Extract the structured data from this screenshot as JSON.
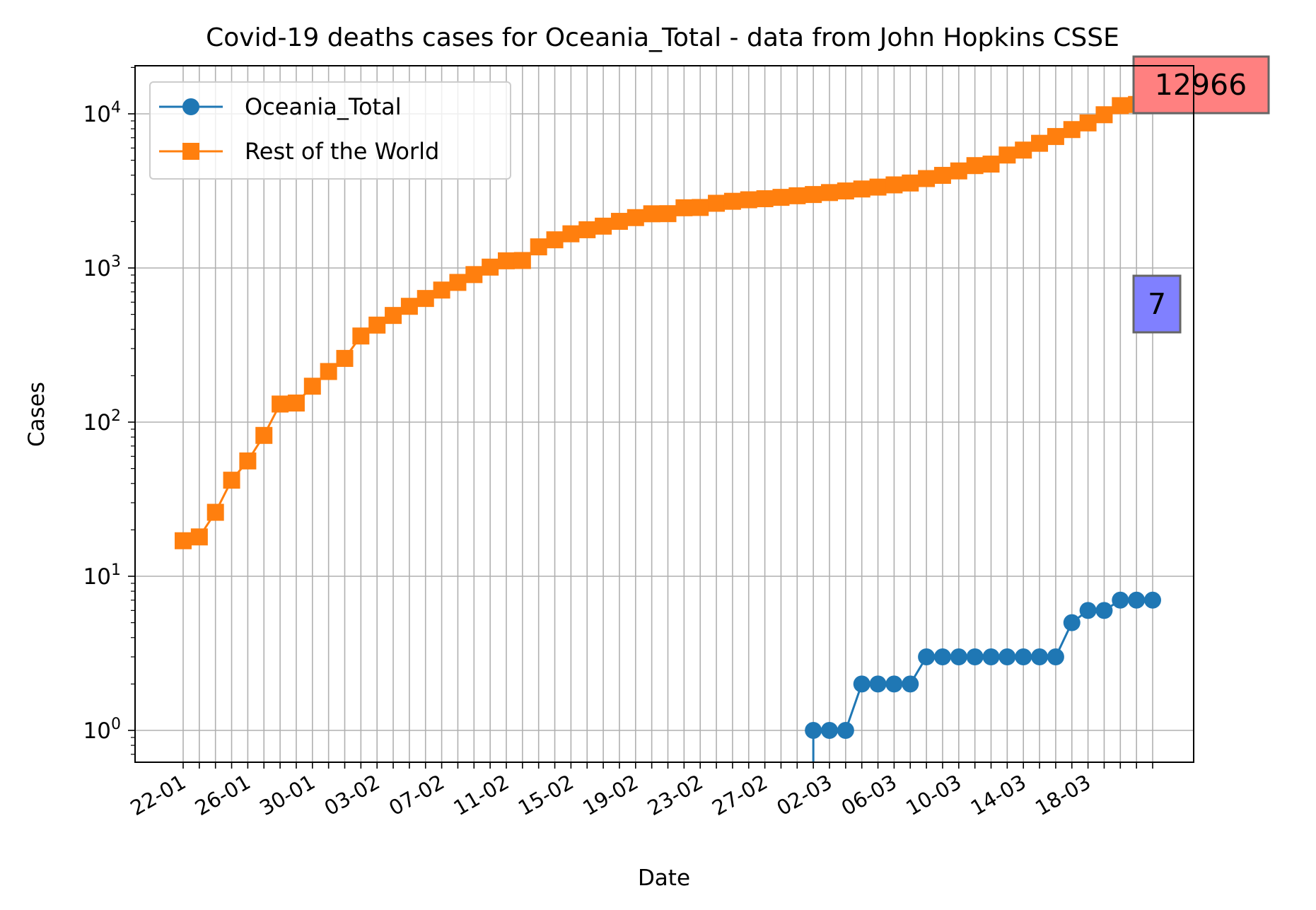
{
  "chart_data": {
    "type": "line",
    "title": "Covid-19 deaths cases for Oceania_Total - data from John Hopkins CSSE",
    "xlabel": "Date",
    "ylabel": "Cases",
    "yscale": "log",
    "ylim": [
      0.6,
      21000
    ],
    "grid": true,
    "legend_position": "upper-left",
    "x_start": "22-01",
    "x_tick_labels": [
      "22-01",
      "26-01",
      "30-01",
      "03-02",
      "07-02",
      "11-02",
      "15-02",
      "19-02",
      "23-02",
      "27-02",
      "02-03",
      "06-03",
      "10-03",
      "14-03",
      "18-03"
    ],
    "y_tick_labels": [
      {
        "value": 1,
        "base": "10",
        "exp": "0"
      },
      {
        "value": 10,
        "base": "10",
        "exp": "1"
      },
      {
        "value": 100,
        "base": "10",
        "exp": "2"
      },
      {
        "value": 1000,
        "base": "10",
        "exp": "3"
      },
      {
        "value": 10000,
        "base": "10",
        "exp": "4"
      }
    ],
    "series": [
      {
        "name": "Oceania_Total",
        "color": "#1f77b4",
        "marker": "circle",
        "x": [
          "22-01",
          "23-01",
          "24-01",
          "25-01",
          "26-01",
          "27-01",
          "28-01",
          "29-01",
          "30-01",
          "31-01",
          "01-02",
          "02-02",
          "03-02",
          "04-02",
          "05-02",
          "06-02",
          "07-02",
          "08-02",
          "09-02",
          "10-02",
          "11-02",
          "12-02",
          "13-02",
          "14-02",
          "15-02",
          "16-02",
          "17-02",
          "18-02",
          "19-02",
          "20-02",
          "21-02",
          "22-02",
          "23-02",
          "24-02",
          "25-02",
          "26-02",
          "27-02",
          "28-02",
          "29-02",
          "01-03",
          "02-03",
          "03-03",
          "04-03",
          "05-03",
          "06-03",
          "07-03",
          "08-03",
          "09-03",
          "10-03",
          "11-03",
          "12-03",
          "13-03",
          "14-03",
          "15-03",
          "16-03",
          "17-03",
          "18-03",
          "19-03",
          "20-03",
          "21-03",
          "22-03"
        ],
        "values": [
          0,
          0,
          0,
          0,
          0,
          0,
          0,
          0,
          0,
          0,
          0,
          0,
          0,
          0,
          0,
          0,
          0,
          0,
          0,
          0,
          0,
          0,
          0,
          0,
          0,
          0,
          0,
          0,
          0,
          0,
          0,
          0,
          0,
          0,
          0,
          0,
          0,
          0,
          0,
          1,
          1,
          1,
          2,
          2,
          2,
          2,
          3,
          3,
          3,
          3,
          3,
          3,
          3,
          3,
          3,
          5,
          6,
          6,
          7,
          7,
          7
        ]
      },
      {
        "name": "Rest of the World",
        "color": "#ff7f0e",
        "marker": "square",
        "x": [
          "22-01",
          "23-01",
          "24-01",
          "25-01",
          "26-01",
          "27-01",
          "28-01",
          "29-01",
          "30-01",
          "31-01",
          "01-02",
          "02-02",
          "03-02",
          "04-02",
          "05-02",
          "06-02",
          "07-02",
          "08-02",
          "09-02",
          "10-02",
          "11-02",
          "12-02",
          "13-02",
          "14-02",
          "15-02",
          "16-02",
          "17-02",
          "18-02",
          "19-02",
          "20-02",
          "21-02",
          "22-02",
          "23-02",
          "24-02",
          "25-02",
          "26-02",
          "27-02",
          "28-02",
          "29-02",
          "01-03",
          "02-03",
          "03-03",
          "04-03",
          "05-03",
          "06-03",
          "07-03",
          "08-03",
          "09-03",
          "10-03",
          "11-03",
          "12-03",
          "13-03",
          "14-03",
          "15-03",
          "16-03",
          "17-03",
          "18-03",
          "19-03",
          "20-03",
          "21-03",
          "22-03"
        ],
        "values": [
          17,
          18,
          26,
          42,
          56,
          82,
          131,
          133,
          171,
          213,
          259,
          362,
          426,
          492,
          564,
          634,
          719,
          806,
          906,
          1013,
          1113,
          1118,
          1371,
          1523,
          1666,
          1770,
          1868,
          2007,
          2122,
          2247,
          2251,
          2458,
          2469,
          2629,
          2708,
          2770,
          2814,
          2872,
          2941,
          2996,
          3085,
          3160,
          3254,
          3348,
          3460,
          3558,
          3802,
          3988,
          4262,
          4615,
          4720,
          5404,
          5819,
          6440,
          7126,
          7905,
          8733,
          9867,
          11299,
          11500,
          12966
        ]
      }
    ],
    "annotations": [
      {
        "text": "12966",
        "series": "Rest of the World",
        "color": "#ff0000"
      },
      {
        "text": "7",
        "series": "Oceania_Total",
        "color": "#0000ff"
      }
    ]
  }
}
